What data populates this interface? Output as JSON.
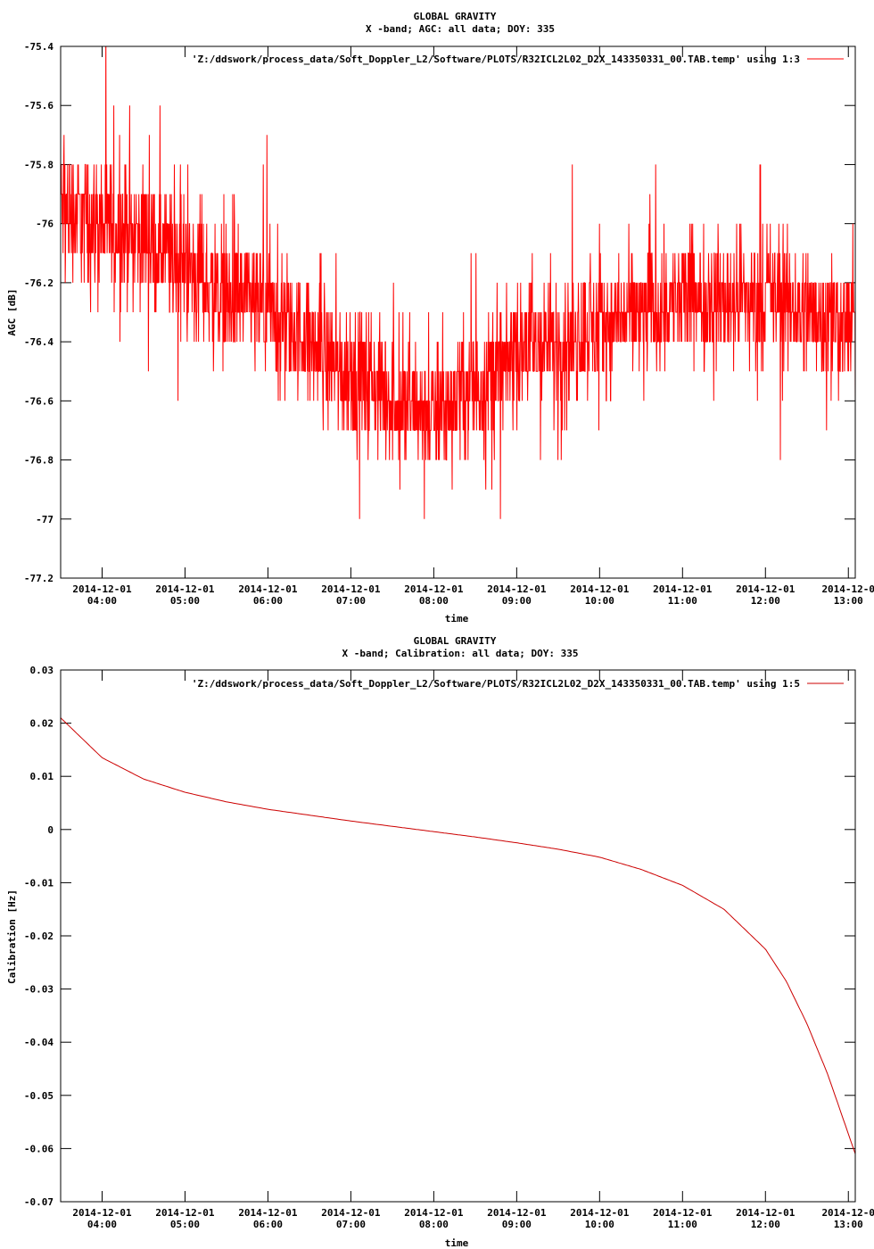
{
  "chart_data": [
    {
      "type": "line",
      "title": "GLOBAL GRAVITY",
      "subtitle": "X -band; AGC: all data; DOY: 335",
      "xlabel": "time",
      "ylabel": "AGC [dB]",
      "ylim": [
        -77.2,
        -75.4
      ],
      "yticks": [
        "-75.4",
        "-75.6",
        "-75.8",
        "-76",
        "-76.2",
        "-76.4",
        "-76.6",
        "-76.8",
        "-77",
        "-77.2"
      ],
      "xticks": [
        {
          "date": "2014-12-01",
          "time": "04:00"
        },
        {
          "date": "2014-12-01",
          "time": "05:00"
        },
        {
          "date": "2014-12-01",
          "time": "06:00"
        },
        {
          "date": "2014-12-01",
          "time": "07:00"
        },
        {
          "date": "2014-12-01",
          "time": "08:00"
        },
        {
          "date": "2014-12-01",
          "time": "09:00"
        },
        {
          "date": "2014-12-01",
          "time": "10:00"
        },
        {
          "date": "2014-12-01",
          "time": "11:00"
        },
        {
          "date": "2014-12-01",
          "time": "12:00"
        },
        {
          "date": "2014-12-0",
          "time": "13:00"
        }
      ],
      "xlim": [
        "2014-12-01 03:30",
        "2014-12-01 13:05"
      ],
      "legend": {
        "label": "'Z:/ddswork/process_data/Soft_Doppler_L2/Software/PLOTS/R32ICL2L02_D2X_143350331_00.TAB.temp' using 1:3",
        "position": "top-right"
      },
      "color": "#ff0000",
      "series": [
        {
          "x": [
            "2014-12-01 03:30",
            "2014-12-01 04:00",
            "2014-12-01 04:30",
            "2014-12-01 05:00",
            "2014-12-01 05:30",
            "2014-12-01 06:00",
            "2014-12-01 06:30",
            "2014-12-01 07:00",
            "2014-12-01 07:30",
            "2014-12-01 08:00",
            "2014-12-01 08:30",
            "2014-12-01 09:00",
            "2014-12-01 09:30",
            "2014-12-01 10:00",
            "2014-12-01 10:30",
            "2014-12-01 11:00",
            "2014-12-01 11:30",
            "2014-12-01 12:00",
            "2014-12-01 12:30",
            "2014-12-01 13:05"
          ],
          "y": [
            -75.95,
            -76.0,
            -76.05,
            -76.15,
            -76.25,
            -76.3,
            -76.4,
            -76.5,
            -76.6,
            -76.65,
            -76.55,
            -76.45,
            -76.4,
            -76.35,
            -76.3,
            -76.25,
            -76.25,
            -76.25,
            -76.3,
            -76.35
          ],
          "noise": 0.3
        }
      ]
    },
    {
      "type": "line",
      "title": "GLOBAL GRAVITY",
      "subtitle": "X -band; Calibration: all data; DOY: 335",
      "xlabel": "time",
      "ylabel": "Calibration [Hz]",
      "ylim": [
        -0.07,
        0.03
      ],
      "yticks": [
        "0.03",
        "0.02",
        "0.01",
        "0",
        "-0.01",
        "-0.02",
        "-0.03",
        "-0.04",
        "-0.05",
        "-0.06",
        "-0.07"
      ],
      "xticks": [
        {
          "date": "2014-12-01",
          "time": "04:00"
        },
        {
          "date": "2014-12-01",
          "time": "05:00"
        },
        {
          "date": "2014-12-01",
          "time": "06:00"
        },
        {
          "date": "2014-12-01",
          "time": "07:00"
        },
        {
          "date": "2014-12-01",
          "time": "08:00"
        },
        {
          "date": "2014-12-01",
          "time": "09:00"
        },
        {
          "date": "2014-12-01",
          "time": "10:00"
        },
        {
          "date": "2014-12-01",
          "time": "11:00"
        },
        {
          "date": "2014-12-01",
          "time": "12:00"
        },
        {
          "date": "2014-12-0",
          "time": "13:00"
        }
      ],
      "xlim": [
        "2014-12-01 03:30",
        "2014-12-01 13:05"
      ],
      "legend": {
        "label": "'Z:/ddswork/process_data/Soft_Doppler_L2/Software/PLOTS/R32ICL2L02_D2X_143350331_00.TAB.temp' using 1:5",
        "position": "top-right"
      },
      "color": "#cc0000",
      "series": [
        {
          "x": [
            "2014-12-01 03:30",
            "2014-12-01 04:00",
            "2014-12-01 04:30",
            "2014-12-01 05:00",
            "2014-12-01 05:30",
            "2014-12-01 06:00",
            "2014-12-01 06:30",
            "2014-12-01 07:00",
            "2014-12-01 07:30",
            "2014-12-01 08:00",
            "2014-12-01 08:30",
            "2014-12-01 09:00",
            "2014-12-01 09:30",
            "2014-12-01 10:00",
            "2014-12-01 10:30",
            "2014-12-01 11:00",
            "2014-12-01 11:30",
            "2014-12-01 12:00",
            "2014-12-01 12:15",
            "2014-12-01 12:30",
            "2014-12-01 12:45",
            "2014-12-01 13:05"
          ],
          "y": [
            0.021,
            0.0135,
            0.0095,
            0.007,
            0.0052,
            0.0038,
            0.0027,
            0.0016,
            0.0006,
            -0.0004,
            -0.0014,
            -0.0025,
            -0.0037,
            -0.0052,
            -0.0075,
            -0.0105,
            -0.015,
            -0.0225,
            -0.0285,
            -0.0365,
            -0.046,
            -0.061
          ]
        }
      ]
    }
  ]
}
